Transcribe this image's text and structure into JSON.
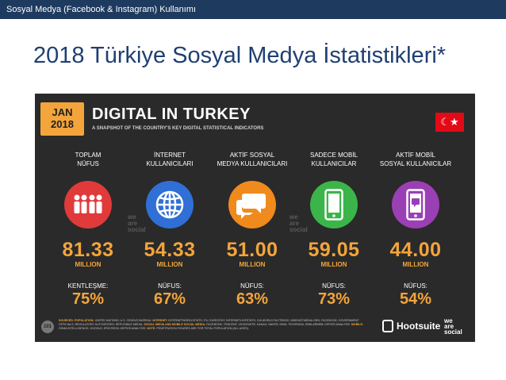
{
  "header": {
    "text": "Sosyal Medya (Facebook & Instagram) Kullanımı"
  },
  "page_title": "2018 Türkiye Sosyal Medya İstatistikleri*",
  "infographic": {
    "date_month": "JAN",
    "date_year": "2018",
    "title": "DIGITAL IN TURKEY",
    "subtitle": "A SNAPSHOT OF THE COUNTRY'S KEY DIGITAL STATISTICAL INDICATORS",
    "flag_symbol": "☾★",
    "watermark": [
      "we",
      "are",
      "social"
    ],
    "columns": [
      {
        "label_line1": "TOPLAM",
        "label_line2": "NÜFUS",
        "icon": "people-icon",
        "color": "#e03a3a",
        "value": "81.33",
        "unit": "MILLION",
        "sub_label": "KENTLEŞME:",
        "percent": "75%"
      },
      {
        "label_line1": "İNTERNET",
        "label_line2": "KULLANICILARI",
        "icon": "globe-icon",
        "color": "#2f6fd6",
        "value": "54.33",
        "unit": "MILLION",
        "sub_label": "NÜFUS:",
        "percent": "67%"
      },
      {
        "label_line1": "AKTİF SOSYAL",
        "label_line2": "MEDYA KULLANICILARI",
        "icon": "chat-bubbles-icon",
        "color": "#f08a1d",
        "value": "51.00",
        "unit": "MILLION",
        "sub_label": "NÜFUS:",
        "percent": "63%"
      },
      {
        "label_line1": "SADECE MOBİL",
        "label_line2": "KULLANICILAR",
        "icon": "mobile-phone-icon",
        "color": "#3bb54a",
        "value": "59.05",
        "unit": "MILLION",
        "sub_label": "NÜFUS:",
        "percent": "73%"
      },
      {
        "label_line1": "AKTİF MOBİL",
        "label_line2": "SOSYAL KULLANICILAR",
        "icon": "mobile-chat-icon",
        "color": "#9b3fb5",
        "value": "44.00",
        "unit": "MILLION",
        "sub_label": "NÜFUS:",
        "percent": "54%"
      }
    ],
    "page_badge": "101",
    "sources_key1": "SOURCES: POPULATION:",
    "sources_text1": "UNITED NATIONS; U.S. CENSUS BUREAU.",
    "sources_key2": "INTERNET:",
    "sources_text2": "INTERNETWORLDSTATS; ITU; EUROSTAT; INTERNETLIVESTATS; CIA WORLD FACTBOOK; MIDEASTMEDIA.ORG; FACEBOOK; GOVERNMENT OFFICIALS; REGULATORY AUTHORITIES; REPUTABLE MEDIA.",
    "sources_key3": "SOCIAL MEDIA AND MOBILE SOCIAL MEDIA:",
    "sources_text3": "FACEBOOK; TENCENT; VKONTAKTE; KAKAO; NAVER; DING; TECHRASA; SIMILARWEB; KEPIOS ANALYSIS.",
    "sources_key4": "MOBILE:",
    "sources_text4": "GSMA INTELLIGENCE; GOOGLE; ERICSSON; KEPIOS ANALYSIS.",
    "sources_key5": "NOTE:",
    "sources_text5": "PENETRATION FIGURES ARE FOR TOTAL POPULATION (ALL AGES).",
    "hootsuite": "Hootsuite",
    "was_logo": [
      "we",
      "are",
      "social"
    ]
  }
}
